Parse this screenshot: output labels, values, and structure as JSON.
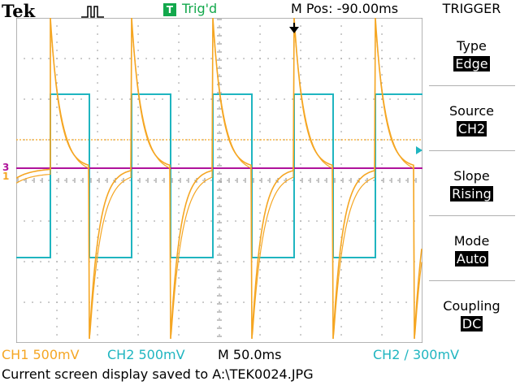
{
  "header": {
    "brand": "Tek",
    "acq_icon": "pulse-waveform-icon",
    "trigger_badge": "T",
    "trigger_status": "Trig'd",
    "position": "M Pos: -90.00ms"
  },
  "menu": {
    "title": "TRIGGER",
    "items": [
      {
        "label": "Type",
        "value": "Edge"
      },
      {
        "label": "Source",
        "value": "CH2"
      },
      {
        "label": "Slope",
        "value": "Rising"
      },
      {
        "label": "Mode",
        "value": "Auto"
      },
      {
        "label": "Coupling",
        "value": "DC"
      }
    ]
  },
  "status": {
    "ch1": "CH1  500mV",
    "ch2": "CH2  500mV",
    "timebase": "M 50.0ms",
    "trigger": "CH2 ∕ 300mV",
    "message": "Current screen display saved to A:\\TEK0024.JPG"
  },
  "markers": {
    "ch3": "3",
    "ch1": "1",
    "trigger_icon": "trigger-position-arrow-icon",
    "level_icon": "trigger-level-arrow-icon"
  },
  "colors": {
    "ch1": "#f5a623",
    "ch2": "#1fb5c0",
    "ch3": "#b0139b",
    "trigger_badge": "#13a84c"
  }
}
